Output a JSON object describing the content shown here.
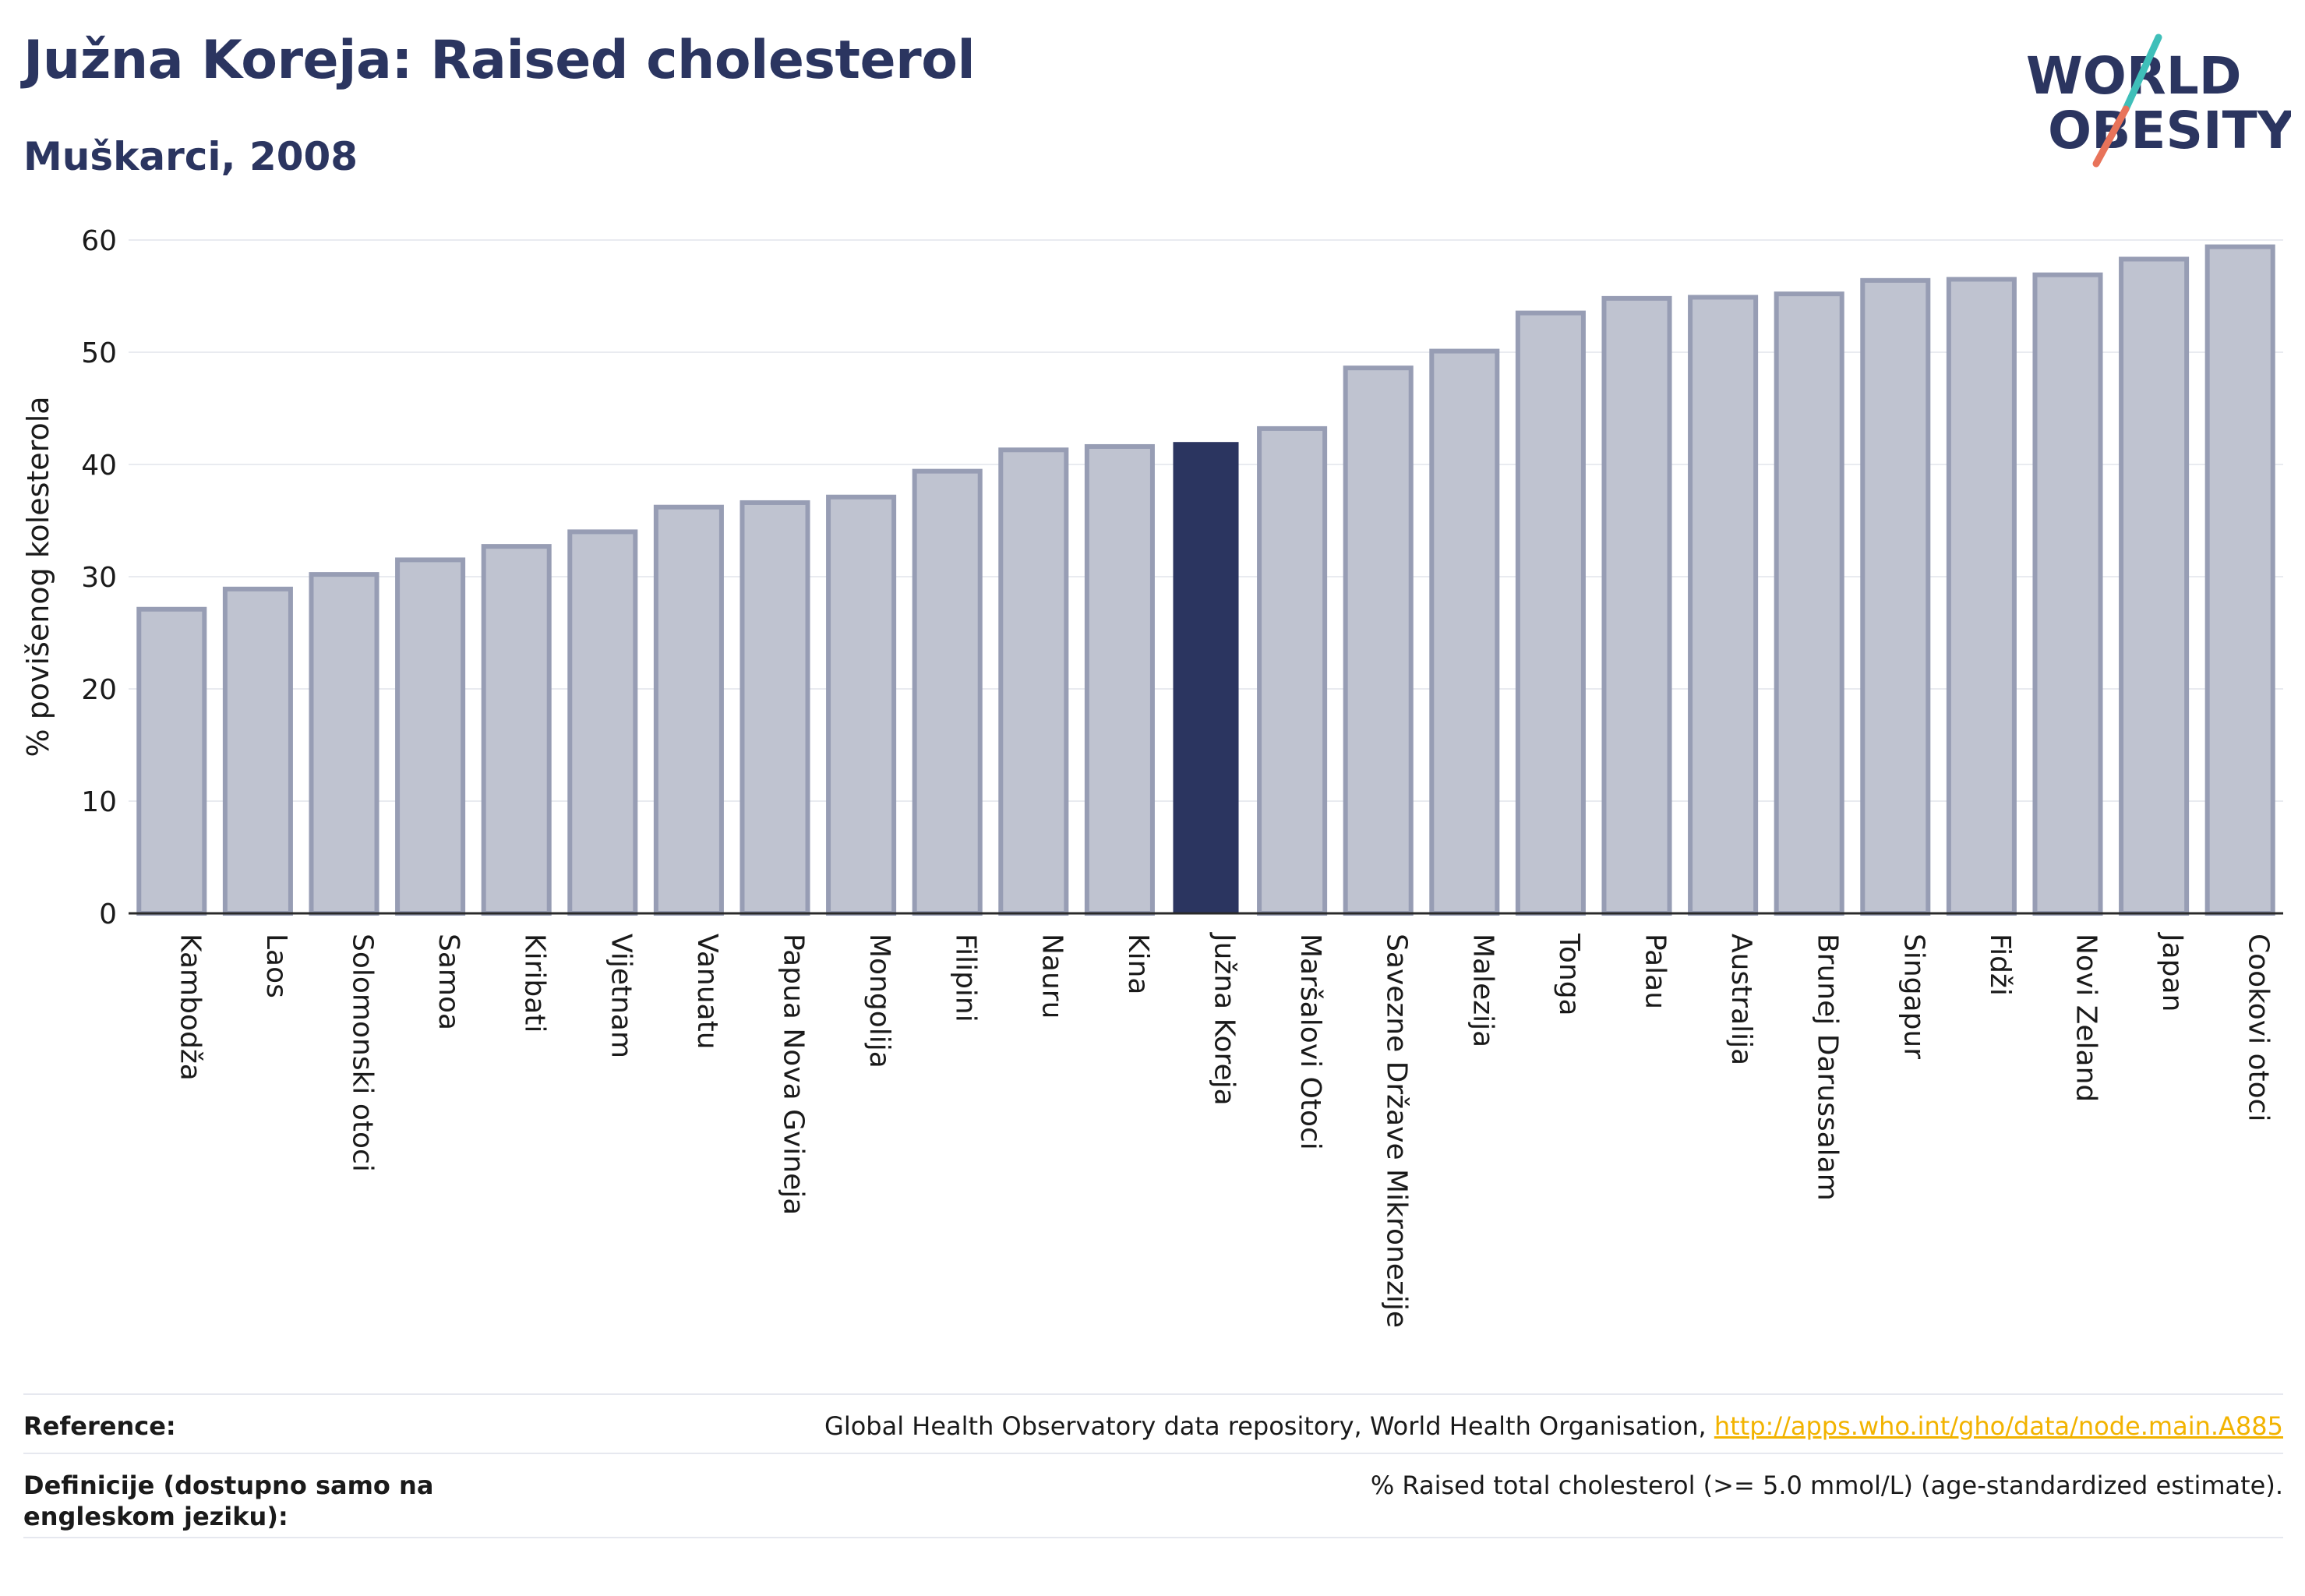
{
  "header": {
    "title": "Južna Koreja: Raised cholesterol",
    "subtitle": "Muškarci, 2008"
  },
  "logo": {
    "line1": "WORLD",
    "line2": "OBESITY"
  },
  "colors": {
    "highlight": "#2b3560",
    "bar_fill": "#bfc3d0",
    "bar_stroke": "#979db4",
    "text": "#2b3560",
    "logo_teal": "#3fbfb9",
    "logo_coral": "#e8735a",
    "link": "#f2b300"
  },
  "chart_data": {
    "type": "bar",
    "title": "Južna Koreja: Raised cholesterol",
    "subtitle": "Muškarci, 2008",
    "xlabel": "",
    "ylabel": "% povišenog kolesterola",
    "ylim": [
      0,
      60
    ],
    "yticks": [
      0,
      10,
      20,
      30,
      40,
      50,
      60
    ],
    "grid": true,
    "highlight": "Južna Koreja",
    "categories": [
      "Kambodža",
      "Laos",
      "Solomonski otoci",
      "Samoa",
      "Kiribati",
      "Vijetnam",
      "Vanuatu",
      "Papua Nova Gvineja",
      "Mongolija",
      "Filipini",
      "Nauru",
      "Kina",
      "Južna Koreja",
      "Maršalovi Otoci",
      "Savezne Države Mikronezije",
      "Malezija",
      "Tonga",
      "Palau",
      "Australija",
      "Brunej Darussalam",
      "Singapur",
      "Fidži",
      "Novi Zeland",
      "Japan",
      "Cookovi otoci"
    ],
    "values": [
      27.1,
      28.9,
      30.2,
      31.5,
      32.7,
      34.0,
      36.2,
      36.6,
      37.1,
      39.4,
      41.3,
      41.6,
      42.0,
      43.2,
      48.6,
      50.1,
      53.5,
      54.8,
      54.9,
      55.2,
      56.4,
      56.5,
      56.9,
      58.3,
      59.4
    ]
  },
  "footer": {
    "reference_label": "Reference:",
    "reference_text": "Global Health Observatory data repository, World Health Organisation, ",
    "reference_link": "http://apps.who.int/gho/data/node.main.A885",
    "definition_label": "Definicije (dostupno samo na engleskom jeziku):",
    "definition_text": "% Raised total cholesterol (>= 5.0 mmol/L) (age-standardized estimate)."
  }
}
